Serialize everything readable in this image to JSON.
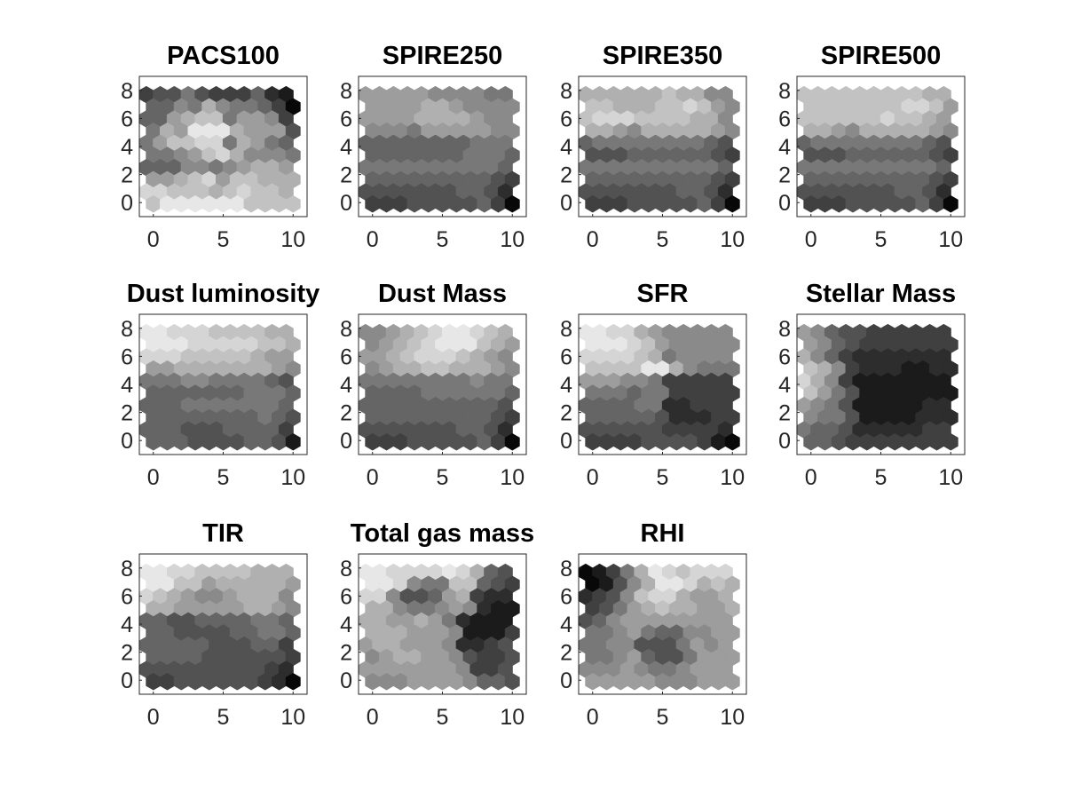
{
  "chart_data": [
    {
      "type": "heatmap",
      "title": "PACS100",
      "xlim": [
        -1,
        11
      ],
      "ylim": [
        -1,
        9
      ],
      "xticks": [
        0,
        5,
        10
      ],
      "yticks": [
        0,
        2,
        4,
        6,
        8
      ],
      "grid_rows_top_to_bottom": [
        "KJJHJKKKILM",
        "IIGHEGHHIKN",
        "IIFEDDHFFGK",
        "HEFBBBEFFFJ",
        "HFDDCCHEFHI",
        "HHGFDCEGGGH",
        "IIIGGHGFEEF",
        "FFEDCFDDEEE",
        "CCDDDEDCDDE",
        "DBBBBBBDDDD"
      ]
    },
    {
      "type": "heatmap",
      "title": "SPIRE250",
      "xlim": [
        -1,
        11
      ],
      "ylim": [
        -1,
        9
      ],
      "xticks": [
        0,
        5,
        10
      ],
      "yticks": [
        0,
        2,
        4,
        6,
        8
      ],
      "grid_rows_top_to_bottom": [
        "FFFFFGGGGHH",
        "FFFFEEFGGGG",
        "FFFFEEEEFGG",
        "GGGHFFFFFGG",
        "IIIIIIIIHHH",
        "IIIIIIIHHHI",
        "HHHHHHHHHHI",
        "IIIIIIIIIJK",
        "JJJJJJJIIJL",
        "KKKJJJJJIKN"
      ]
    },
    {
      "type": "heatmap",
      "title": "SPIRE350",
      "xlim": [
        -1,
        11
      ],
      "ylim": [
        -1,
        9
      ],
      "xticks": [
        0,
        5,
        10
      ],
      "yticks": [
        0,
        2,
        4,
        6,
        8
      ],
      "grid_rows_top_to_bottom": [
        "EEEEEEDEEGG",
        "DDEEEDDCDFG",
        "DCCCDDDDEEG",
        "EEFGEEEEEFG",
        "IHHHHHHHHIJ",
        "JJJIIIIIIJK",
        "HHHHHHHHHHI",
        "IIIIIIIIIJK",
        "JJJJJJJIIJL",
        "KKKJJJJJIKN"
      ]
    },
    {
      "type": "heatmap",
      "title": "SPIRE500",
      "xlim": [
        -1,
        11
      ],
      "ylim": [
        -1,
        9
      ],
      "xticks": [
        0,
        5,
        10
      ],
      "yticks": [
        0,
        2,
        4,
        6,
        8
      ],
      "grid_rows_top_to_bottom": [
        "DDDDDDDDDEE",
        "DDDDDDDCCDF",
        "DDDDDDCDDEF",
        "EEFGEEEEEFG",
        "IHHHHHHHHIJ",
        "JJJIIIIIIJK",
        "HHHHHHHHHHI",
        "IIIIIIIIIJK",
        "JJJJJJJIIJL",
        "KKKJJJJJIKN"
      ]
    },
    {
      "type": "heatmap",
      "title": "Dust luminosity",
      "xlim": [
        -1,
        11
      ],
      "ylim": [
        -1,
        9
      ],
      "xticks": [
        0,
        5,
        10
      ],
      "yticks": [
        0,
        2,
        4,
        6,
        8
      ],
      "grid_rows_top_to_bottom": [
        "BBCCCDDDDEE",
        "BBBCCCCCDDE",
        "CCCDDDDDEFF",
        "FFEEEEEEEFG",
        "HHHGGHHHHIJ",
        "IIIIIIIHHHI",
        "IIIHHHHHHHI",
        "IIIIIIIIHIJ",
        "IIIJJJIIIIK",
        "IIIJJJJIIJM"
      ]
    },
    {
      "type": "heatmap",
      "title": "Dust Mass",
      "xlim": [
        -1,
        11
      ],
      "ylim": [
        -1,
        9
      ],
      "xticks": [
        0,
        5,
        10
      ],
      "yticks": [
        0,
        2,
        4,
        6,
        8
      ],
      "grid_rows_top_to_bottom": [
        "GGFEDCBBCDE",
        "GFEDCBBBDEF",
        "FFEDCCCDEFG",
        "GFEEDDEEEFG",
        "HHHHHHHHGHH",
        "IIIIHHHHHHI",
        "IIIIIIIIIIJ",
        "IIIIIIIIIJK",
        "JJJJJJJIIJL",
        "KKKJJJJJIKN"
      ]
    },
    {
      "type": "heatmap",
      "title": "SFR",
      "xlim": [
        -1,
        11
      ],
      "ylim": [
        -1,
        9
      ],
      "xticks": [
        0,
        5,
        10
      ],
      "yticks": [
        0,
        2,
        4,
        6,
        8
      ],
      "grid_rows_top_to_bottom": [
        "BBCCEFGGGGG",
        "BBBCDFGGGGG",
        "CCCCDEHGGGG",
        "DDDDBBEGHHH",
        "FFFGGHKKKKK",
        "HHHIHHKKKKK",
        "IIIIHHLLKKK",
        "IIIIIJLLLKK",
        "JJJJJJKKKKL",
        "KKKKJJJJKMN"
      ]
    },
    {
      "type": "heatmap",
      "title": "Stellar Mass",
      "xlim": [
        -1,
        11
      ],
      "ylim": [
        -1,
        9
      ],
      "xticks": [
        0,
        5,
        10
      ],
      "yticks": [
        0,
        2,
        4,
        6,
        8
      ],
      "grid_rows_top_to_bottom": [
        "FGIJJKKKKKK",
        "FGIJKKKKKKK",
        "EGIKLLLLLLL",
        "DEGKLLLMMLL",
        "CEGKMMMMMMM",
        "DFHJMMMMMMM",
        "FGHJMMMMMLL",
        "GHHJMMMMLLL",
        "HIIJLLLLLKK",
        "IIJKKKKKKKK"
      ]
    },
    {
      "type": "heatmap",
      "title": "TIR",
      "xlim": [
        -1,
        11
      ],
      "ylim": [
        -1,
        9
      ],
      "xticks": [
        0,
        5,
        10
      ],
      "yticks": [
        0,
        2,
        4,
        6,
        8
      ],
      "grid_rows_top_to_bottom": [
        "BBCCDDDDEEE",
        "BBDDFEEEEEF",
        "CDEFGGFEEEG",
        "EEFFFFFEEFG",
        "IIJJIIIIHHI",
        "IIJJJJIIHHI",
        "IIIIIJJJIIK",
        "IIIIJJJJJJK",
        "JJJJJJJJJKL",
        "KKJJJJJJKLN"
      ]
    },
    {
      "type": "heatmap",
      "title": "Total gas mass",
      "xlim": [
        -1,
        11
      ],
      "ylim": [
        -1,
        9
      ],
      "xticks": [
        0,
        5,
        10
      ],
      "yticks": [
        0,
        2,
        4,
        6,
        8
      ],
      "grid_rows_top_to_bottom": [
        "BBCCCCBCEIJ",
        "BBCGHHDDIJK",
        "CCGJJIFEKLL",
        "EEGHHGFGLMM",
        "EEFFEFHLMMM",
        "EEEFFFGMMMK",
        "FEEFFFGLLKJ",
        "GFEEFFGJKKJ",
        "FFFFFFFGKKJ",
        "GGGFFFFGIIJ"
      ]
    },
    {
      "type": "heatmap",
      "title": "RHI",
      "xlim": [
        -1,
        11
      ],
      "ylim": [
        -1,
        9
      ],
      "xticks": [
        0,
        5,
        10
      ],
      "yticks": [
        0,
        2,
        4,
        6,
        8
      ],
      "grid_rows_top_to_bottom": [
        "NMKHEBCDCCC",
        "NMJGEBBCEDE",
        "LKJGDCCEFFE",
        "KJHFEDEEFFE",
        "JIGFFFFFFFF",
        "HHGFHIIGGFF",
        "HHGGJJJHFGF",
        "HHGFIJJHFFF",
        "GGGFGHHGFFF",
        "FFFFFGGGFFF"
      ]
    }
  ]
}
